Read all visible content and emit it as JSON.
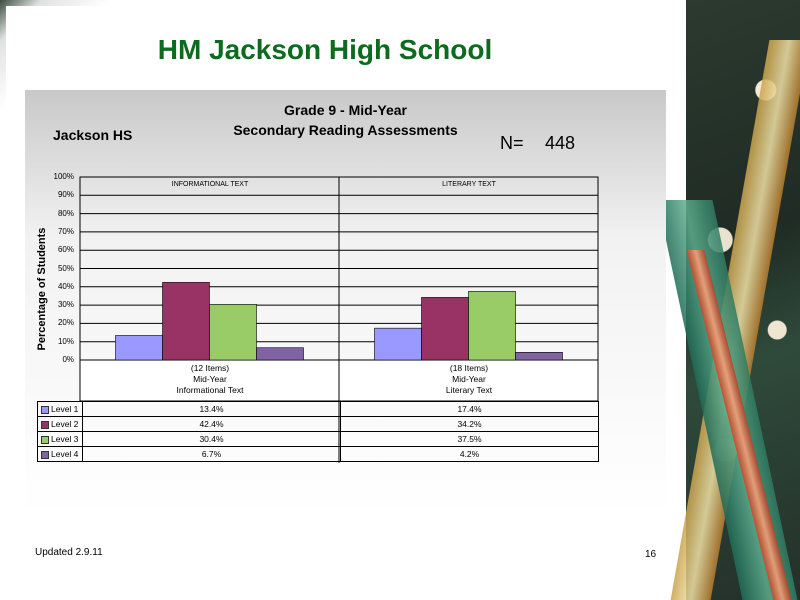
{
  "slide": {
    "title": "HM Jackson High School",
    "footer_left": "Updated  2.9.11",
    "page_number": "16"
  },
  "chart_header": {
    "school": "Jackson HS",
    "n_label": "N=",
    "n_value": "448"
  },
  "chart_data": {
    "type": "bar",
    "title": "Grade 9 - Mid-Year",
    "subtitle": "Secondary Reading Assessments",
    "ylabel": "Percentage of Students",
    "ylim": [
      0,
      100
    ],
    "y_ticks": [
      "100%",
      "90%",
      "80%",
      "70%",
      "60%",
      "50%",
      "40%",
      "30%",
      "20%",
      "10%",
      "0%"
    ],
    "grid": true,
    "category_headers": [
      "INFORMATIONAL TEXT",
      "LITERARY TEXT"
    ],
    "categories": [
      [
        "(12 Items)",
        "Mid-Year",
        "Informational Text"
      ],
      [
        "(18 Items)",
        "Mid-Year",
        "Literary Text"
      ]
    ],
    "series": [
      {
        "name": "Level 1",
        "values": [
          13.4,
          17.4
        ],
        "labels": [
          "13.4%",
          "17.4%"
        ],
        "color": "#9999ff"
      },
      {
        "name": "Level 2",
        "values": [
          42.4,
          34.2
        ],
        "labels": [
          "42.4%",
          "34.2%"
        ],
        "color": "#993366"
      },
      {
        "name": "Level 3",
        "values": [
          30.4,
          37.5
        ],
        "labels": [
          "30.4%",
          "37.5%"
        ],
        "color": "#99cc66"
      },
      {
        "name": "Level 4",
        "values": [
          6.7,
          4.2
        ],
        "labels": [
          "6.7%",
          "4.2%"
        ],
        "color": "#8064a2"
      }
    ]
  }
}
